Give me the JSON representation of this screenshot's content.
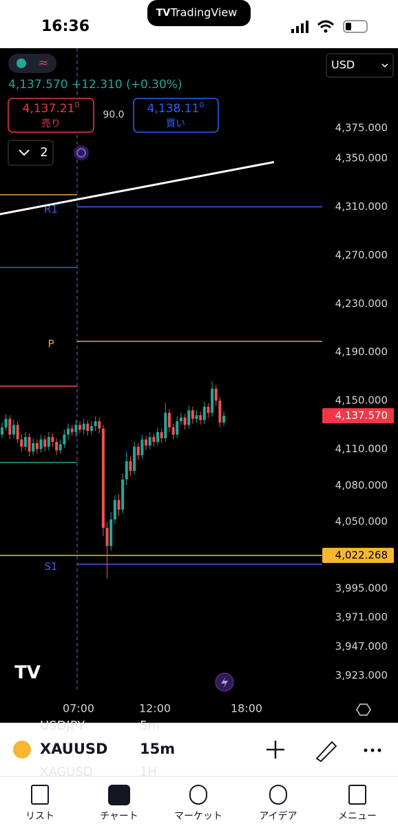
{
  "status_bar": {
    "time": "16:36",
    "app": "TradingView"
  },
  "quote": {
    "price": "4,137.570",
    "change": "+12.310",
    "change_pct": "(+0.30%)"
  },
  "order": {
    "sell_price": "4,137.21",
    "sell_sup": "0",
    "sell_label": "売り",
    "spread": "90.0",
    "buy_price": "4,138.11",
    "buy_sup": "0",
    "buy_label": "買い"
  },
  "layers_count": "2",
  "currency": "USD",
  "chart_data": {
    "type": "candlestick",
    "open": [
      4122,
      4128,
      4135,
      4122,
      4130,
      4118,
      4112,
      4120,
      4108,
      4115,
      4110,
      4118,
      4112,
      4120,
      4116,
      4109,
      4114,
      4122,
      4127,
      4124,
      4130,
      4126,
      4131,
      4125,
      4129,
      4133,
      4127,
      4045,
      4030,
      4052,
      4068,
      4060,
      4085,
      4100,
      4092,
      4112,
      4105,
      4118,
      4113,
      4120,
      4116,
      4124,
      4119,
      4140,
      4128,
      4122,
      4133,
      4136,
      4130,
      4142,
      4135,
      4138,
      4134,
      4145,
      4140,
      4160,
      4150,
      4132
    ],
    "high": [
      4132,
      4139,
      4138,
      4134,
      4133,
      4122,
      4124,
      4123,
      4119,
      4118,
      4122,
      4121,
      4124,
      4123,
      4119,
      4118,
      4126,
      4131,
      4130,
      4134,
      4133,
      4135,
      4134,
      4133,
      4137,
      4136,
      4130,
      4050,
      4058,
      4072,
      4073,
      4090,
      4108,
      4104,
      4116,
      4115,
      4122,
      4121,
      4124,
      4123,
      4128,
      4127,
      4148,
      4143,
      4131,
      4137,
      4140,
      4139,
      4146,
      4145,
      4142,
      4141,
      4149,
      4148,
      4166,
      4163,
      4153,
      4141
    ],
    "low": [
      4119,
      4125,
      4118,
      4119,
      4115,
      4108,
      4109,
      4104,
      4105,
      4106,
      4107,
      4108,
      4109,
      4112,
      4105,
      4106,
      4111,
      4118,
      4121,
      4120,
      4123,
      4122,
      4121,
      4122,
      4125,
      4123,
      4038,
      4003,
      4026,
      4048,
      4055,
      4057,
      4080,
      4088,
      4089,
      4101,
      4102,
      4109,
      4110,
      4112,
      4113,
      4115,
      4116,
      4124,
      4118,
      4119,
      4130,
      4126,
      4127,
      4131,
      4132,
      4130,
      4131,
      4136,
      4137,
      4146,
      4128,
      4129
    ],
    "close": [
      4128,
      4135,
      4122,
      4130,
      4118,
      4112,
      4120,
      4108,
      4115,
      4110,
      4118,
      4112,
      4120,
      4116,
      4109,
      4114,
      4122,
      4127,
      4124,
      4130,
      4126,
      4131,
      4125,
      4129,
      4133,
      4127,
      4045,
      4030,
      4052,
      4068,
      4060,
      4085,
      4100,
      4092,
      4112,
      4105,
      4118,
      4113,
      4120,
      4116,
      4124,
      4119,
      4140,
      4128,
      4122,
      4133,
      4136,
      4130,
      4142,
      4135,
      4138,
      4134,
      4145,
      4140,
      4160,
      4150,
      4132,
      4137.57
    ],
    "up_color": "#26a69a",
    "down_color": "#ef5350",
    "ylim": [
      3904,
      4441
    ],
    "yticks": [
      {
        "value": 4375,
        "label": "4,375.000"
      },
      {
        "value": 4350,
        "label": "4,350.000"
      },
      {
        "value": 4310,
        "label": "4,310.000"
      },
      {
        "value": 4270,
        "label": "4,270.000"
      },
      {
        "value": 4230,
        "label": "4,230.000"
      },
      {
        "value": 4190,
        "label": "4,190.000"
      },
      {
        "value": 4150,
        "label": "4,150.000"
      },
      {
        "value": 4110,
        "label": "4,110.000"
      },
      {
        "value": 4080,
        "label": "4,080.000"
      },
      {
        "value": 4050,
        "label": "4,050.000"
      },
      {
        "value": 3995,
        "label": "3,995.000"
      },
      {
        "value": 3971,
        "label": "3,971.000"
      },
      {
        "value": 3947,
        "label": "3,947.000"
      },
      {
        "value": 3923,
        "label": "3,923.000"
      }
    ],
    "xticks": [
      "07:00",
      "12:00",
      "18:00"
    ],
    "levels": [
      {
        "name": "R1",
        "value": 4310,
        "color": "#4a5de0"
      },
      {
        "name": "P",
        "value": 4199,
        "color": "#f0a050"
      },
      {
        "name": "S1",
        "value": 4015,
        "color": "#4a5de0"
      }
    ],
    "prev_levels": [
      {
        "value": 4320,
        "color": "#f0a050"
      },
      {
        "value": 4260,
        "color": "#4a5de0"
      },
      {
        "value": 4162,
        "color": "#ef5350"
      },
      {
        "value": 4099,
        "color": "#26a69a"
      }
    ],
    "trendline": [
      4304,
      4347
    ],
    "price_labels": [
      {
        "value": 4137.57,
        "label": "4,137.570",
        "color": "#f23645"
      },
      {
        "value": 4022.268,
        "label": "4,022.268",
        "color": "#f7b731"
      }
    ]
  },
  "symbol_bar": {
    "ghost_symbol_top": "USDJPY",
    "ghost_interval_top": "5m",
    "symbol": "XAUUSD",
    "interval": "15m",
    "ghost_symbol_bottom": "XAGUSD",
    "ghost_interval_bottom": "1H"
  },
  "tabs": [
    "リスト",
    "チャート",
    "マーケット",
    "アイデア",
    "メニュー"
  ]
}
